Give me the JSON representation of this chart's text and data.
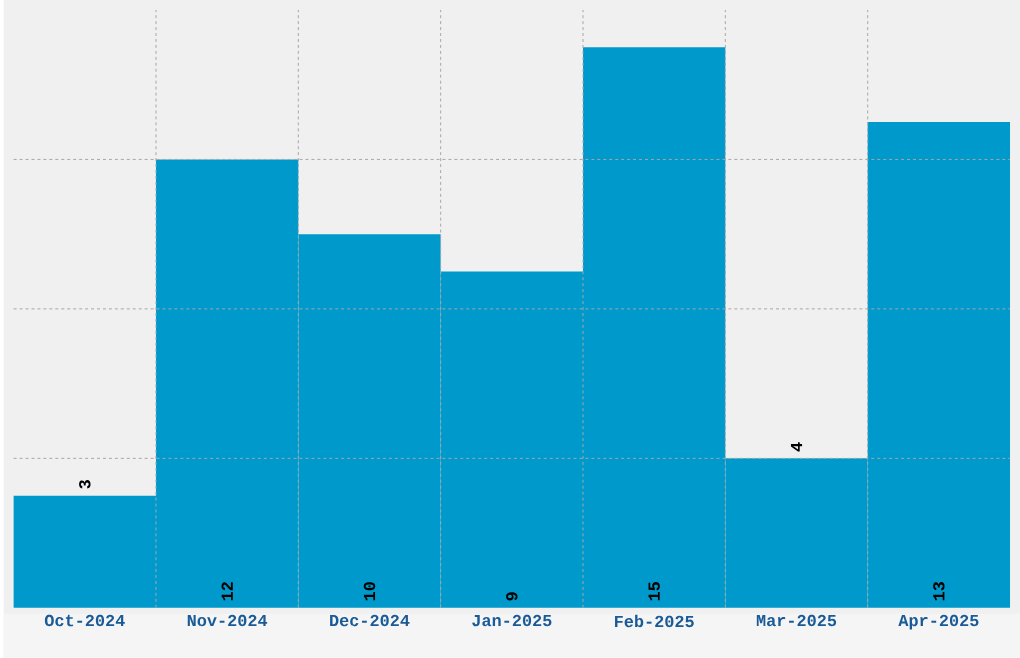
{
  "chart_data": {
    "type": "bar",
    "categories": [
      "Oct-2024",
      "Nov-2024",
      "Dec-2024",
      "Jan-2025",
      "Feb-2025",
      "Mar-2025",
      "Apr-2025"
    ],
    "values": [
      3,
      12,
      10,
      9,
      15,
      4,
      13
    ],
    "color": "#0099cc",
    "ylim": [
      0,
      16
    ],
    "yticks": [
      {
        "value": 4,
        "label": null
      },
      {
        "value": 8,
        "label": null
      },
      {
        "value": 12,
        "label": null
      }
    ],
    "tick_labels": "x",
    "grid": true,
    "data_labels": true
  }
}
